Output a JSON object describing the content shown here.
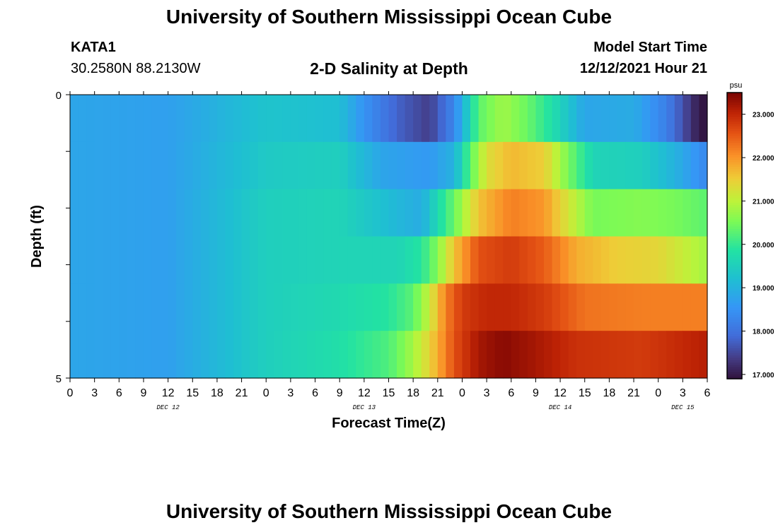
{
  "header": {
    "title": "University of Southern Mississippi Ocean Cube",
    "station": "KATA1",
    "coordinates": "30.2580N  88.2130W",
    "subtitle": "2-D Salinity at Depth",
    "model_start_label": "Model Start Time",
    "model_start_value": "12/12/2021 Hour 21"
  },
  "footer": {
    "title": "University of Southern Mississippi Ocean Cube"
  },
  "chart_data": {
    "type": "heatmap",
    "title": "2-D Salinity at Depth",
    "xlabel": "Forecast Time(Z)",
    "ylabel": "Depth (ft)",
    "x_unit": "hours since 12/12/2021 00Z",
    "xlim": [
      0,
      78
    ],
    "ylim": [
      5,
      0
    ],
    "y_ticks": [
      "0",
      "5"
    ],
    "x_tick_labels": [
      "0",
      "3",
      "6",
      "9",
      "12",
      "15",
      "18",
      "21",
      "0",
      "3",
      "6",
      "9",
      "12",
      "15",
      "18",
      "21",
      "0",
      "3",
      "6",
      "9",
      "12",
      "15",
      "18",
      "21",
      "0",
      "3",
      "6"
    ],
    "day_labels": [
      {
        "label": "DEC 12",
        "hour": 12
      },
      {
        "label": "DEC 13",
        "hour": 36
      },
      {
        "label": "DEC 14",
        "hour": 60
      },
      {
        "label": "DEC 15",
        "hour": 75
      }
    ],
    "depth_layers": [
      "layer 1",
      "layer 2",
      "layer 3",
      "layer 4",
      "layer 5",
      "layer 6"
    ],
    "colorbar": {
      "unit": "psu",
      "min": 16.9,
      "max": 23.5,
      "tick_values": [
        17.0,
        18.0,
        19.0,
        20.0,
        21.0,
        22.0,
        23.0
      ],
      "tick_labels": [
        "17.000",
        "18.000",
        "19.000",
        "20.000",
        "21.000",
        "22.000",
        "23.000"
      ]
    },
    "salinity_knots": [
      {
        "layer": 1,
        "hours": [
          0,
          12,
          24,
          33,
          36,
          40,
          44,
          47,
          50,
          53,
          56,
          59,
          63,
          69,
          73,
          77,
          78
        ],
        "psu": [
          18.8,
          18.7,
          19.3,
          19.2,
          18.5,
          17.8,
          17.4,
          18.3,
          20.3,
          20.8,
          20.4,
          19.8,
          18.8,
          18.9,
          18.2,
          17.0,
          16.9
        ]
      },
      {
        "layer": 2,
        "hours": [
          0,
          12,
          24,
          33,
          38,
          44,
          47,
          49,
          51,
          54,
          58,
          61,
          64,
          70,
          74,
          78
        ],
        "psu": [
          18.8,
          18.7,
          19.4,
          19.5,
          18.8,
          18.6,
          19.0,
          20.3,
          21.3,
          21.7,
          21.5,
          20.5,
          19.6,
          19.5,
          19.0,
          18.3
        ]
      },
      {
        "layer": 3,
        "hours": [
          0,
          12,
          24,
          33,
          40,
          43,
          45,
          47,
          50,
          54,
          58,
          61,
          64,
          70,
          74,
          78
        ],
        "psu": [
          18.8,
          18.7,
          19.5,
          19.6,
          19.1,
          18.9,
          19.7,
          20.4,
          21.6,
          22.2,
          22.0,
          21.2,
          20.5,
          20.6,
          20.5,
          20.3
        ]
      },
      {
        "layer": 4,
        "hours": [
          0,
          12,
          24,
          33,
          40,
          43,
          45,
          47,
          50,
          54,
          58,
          62,
          67,
          72,
          78
        ],
        "psu": [
          18.8,
          18.7,
          19.5,
          19.6,
          19.6,
          19.9,
          20.6,
          21.6,
          22.6,
          22.8,
          22.5,
          21.8,
          21.5,
          21.4,
          20.8
        ]
      },
      {
        "layer": 5,
        "hours": [
          0,
          12,
          24,
          33,
          39,
          42,
          44,
          46,
          48,
          51,
          54,
          58,
          63,
          70,
          78
        ],
        "psu": [
          18.8,
          18.7,
          19.5,
          19.7,
          19.9,
          20.3,
          21.1,
          22.2,
          22.8,
          23.0,
          23.0,
          22.8,
          22.3,
          22.2,
          22.2
        ]
      },
      {
        "layer": 6,
        "hours": [
          0,
          12,
          24,
          33,
          39,
          41,
          43,
          45,
          47,
          50,
          53,
          57,
          62,
          70,
          78
        ],
        "psu": [
          18.8,
          18.7,
          19.5,
          19.8,
          20.2,
          20.6,
          21.1,
          21.8,
          22.6,
          23.2,
          23.4,
          23.2,
          22.9,
          22.8,
          23.1
        ]
      }
    ]
  }
}
